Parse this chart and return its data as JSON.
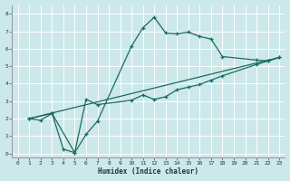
{
  "xlabel": "Humidex (Indice chaleur)",
  "xlim": [
    -0.5,
    23.5
  ],
  "ylim": [
    -0.2,
    8.5
  ],
  "xticks": [
    0,
    1,
    2,
    3,
    4,
    5,
    6,
    7,
    8,
    9,
    10,
    11,
    12,
    13,
    14,
    15,
    16,
    17,
    18,
    19,
    20,
    21,
    22,
    23
  ],
  "yticks": [
    0,
    1,
    2,
    3,
    4,
    5,
    6,
    7,
    8
  ],
  "bg_color": "#cce8ea",
  "line_color": "#1a6b5e",
  "grid_color": "#ffffff",
  "line1_x": [
    1,
    2,
    3,
    4,
    5,
    6,
    7,
    10,
    11,
    12,
    13,
    14,
    15,
    16,
    17,
    18,
    21,
    22,
    23
  ],
  "line1_y": [
    2.0,
    1.9,
    2.3,
    0.25,
    0.05,
    1.1,
    1.85,
    6.15,
    7.2,
    7.8,
    6.9,
    6.85,
    6.95,
    6.7,
    6.55,
    5.55,
    5.35,
    5.3,
    5.5
  ],
  "line2_x": [
    1,
    3,
    5,
    6,
    7,
    10,
    11,
    12,
    13,
    14,
    15,
    16,
    17,
    18,
    21,
    22,
    23
  ],
  "line2_y": [
    2.0,
    2.3,
    0.05,
    3.1,
    2.8,
    3.05,
    3.35,
    3.1,
    3.25,
    3.65,
    3.8,
    3.95,
    4.2,
    4.45,
    5.1,
    5.3,
    5.5
  ],
  "line3_x": [
    1,
    23
  ],
  "line3_y": [
    2.0,
    5.5
  ]
}
